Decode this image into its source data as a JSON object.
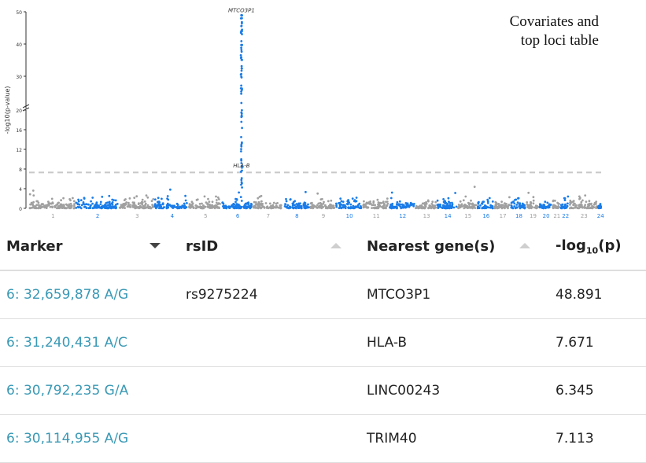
{
  "caption": {
    "line1": "Covariates and",
    "line2": "top loci table"
  },
  "chart_data": {
    "type": "scatter",
    "subtype": "manhattan",
    "ylabel": "-log10(p-value)",
    "y_ticks_lower": [
      0,
      4,
      8,
      12,
      16,
      20
    ],
    "y_ticks_upper": [
      30,
      40,
      50
    ],
    "axis_break_at": 20,
    "significance_threshold": 7.3,
    "chromosomes": [
      "1",
      "2",
      "3",
      "4",
      "5",
      "6",
      "7",
      "8",
      "9",
      "10",
      "11",
      "12",
      "13",
      "14",
      "15",
      "16",
      "17",
      "18",
      "19",
      "20",
      "21",
      "22",
      "23",
      "24"
    ],
    "colors": {
      "odd": "#a0a0a0",
      "even": "#1a7ce8",
      "threshold": "#c8c8c8"
    },
    "annotations": [
      {
        "label": "MTCO3P1",
        "chromosome": "6",
        "y": 48.891
      },
      {
        "label": "HLA-B",
        "chromosome": "6",
        "y": 7.671
      }
    ],
    "peak": {
      "chromosome": "6",
      "max_y": 48.891
    }
  },
  "table": {
    "headers": {
      "marker": "Marker",
      "rsid": "rsID",
      "gene": "Nearest gene(s)",
      "logp_prefix": "-log",
      "logp_sub": "10",
      "logp_suffix": "(p)"
    },
    "rows": [
      {
        "marker": "6: 32,659,878 A/G",
        "rsid": "rs9275224",
        "gene": "MTCO3P1",
        "logp": "48.891"
      },
      {
        "marker": "6: 31,240,431 A/C",
        "rsid": "",
        "gene": "HLA-B",
        "logp": "7.671"
      },
      {
        "marker": "6: 30,792,235 G/A",
        "rsid": "",
        "gene": "LINC00243",
        "logp": "6.345"
      },
      {
        "marker": "6: 30,114,955 A/G",
        "rsid": "",
        "gene": "TRIM40",
        "logp": "7.113"
      }
    ]
  }
}
